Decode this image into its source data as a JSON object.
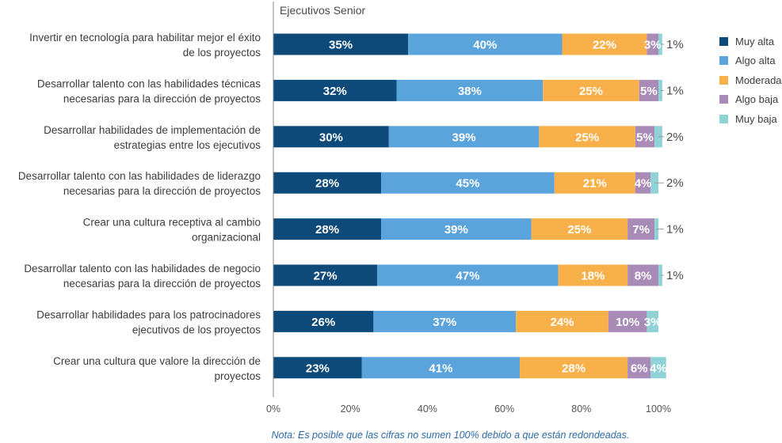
{
  "chart_data": {
    "type": "bar",
    "orientation": "horizontal",
    "stacked": true,
    "title": "Ejecutivos Senior",
    "categories": [
      "Invertir en tecnología para habilitar mejor el éxito de los proyectos",
      "Desarrollar talento con las habilidades técnicas necesarias para la dirección de proyectos",
      "Desarrollar habilidades de implementación de estrategias entre los ejecutivos",
      "Desarrollar talento con las habilidades de liderazgo necesarias para la dirección de proyectos",
      "Crear una cultura receptiva al cambio organizacional",
      "Desarrollar talento con las habilidades de negocio necesarias para la dirección de proyectos",
      "Desarrollar habilidades para los patrocinadores ejecutivos de los proyectos",
      "Crear una cultura que valore la dirección de proyectos"
    ],
    "category_lines": [
      [
        "Invertir en tecnología para habilitar mejor el éxito",
        "de los proyectos"
      ],
      [
        "Desarrollar talento con las habilidades técnicas",
        "necesarias para la dirección de proyectos"
      ],
      [
        "Desarrollar habilidades de implementación de",
        "estrategias entre los ejecutivos"
      ],
      [
        "Desarrollar talento con las habilidades de liderazgo",
        "necesarias para la dirección de proyectos"
      ],
      [
        "Crear una cultura receptiva al cambio",
        "organizacional"
      ],
      [
        "Desarrollar talento con las habilidades de negocio",
        "necesarias para la dirección de proyectos"
      ],
      [
        "Desarrollar habilidades para los patrocinadores",
        "ejecutivos de los proyectos"
      ],
      [
        "Crear una cultura que valore la dirección de",
        "proyectos"
      ]
    ],
    "series": [
      {
        "name": "Muy alta",
        "color": "#0d4a7a",
        "values": [
          35,
          32,
          30,
          28,
          28,
          27,
          26,
          23
        ]
      },
      {
        "name": "Algo alta",
        "color": "#5ba4db",
        "values": [
          40,
          38,
          39,
          45,
          39,
          47,
          37,
          41
        ]
      },
      {
        "name": "Moderada",
        "color": "#f8b14a",
        "values": [
          22,
          25,
          25,
          21,
          25,
          18,
          24,
          28
        ]
      },
      {
        "name": "Algo baja",
        "color": "#a98bb8",
        "values": [
          3,
          5,
          5,
          4,
          7,
          8,
          10,
          6
        ]
      },
      {
        "name": "Muy baja",
        "color": "#8fd3d6",
        "values": [
          1,
          1,
          2,
          2,
          1,
          1,
          3,
          4
        ]
      }
    ],
    "xlim": [
      0,
      100
    ],
    "xticks": [
      "0%",
      "20%",
      "40%",
      "60%",
      "80%",
      "100%"
    ],
    "legend_position": "right",
    "grid": false
  },
  "note": "Nota: Es posible que las cifras no sumen 100% debido a que están redondeadas."
}
